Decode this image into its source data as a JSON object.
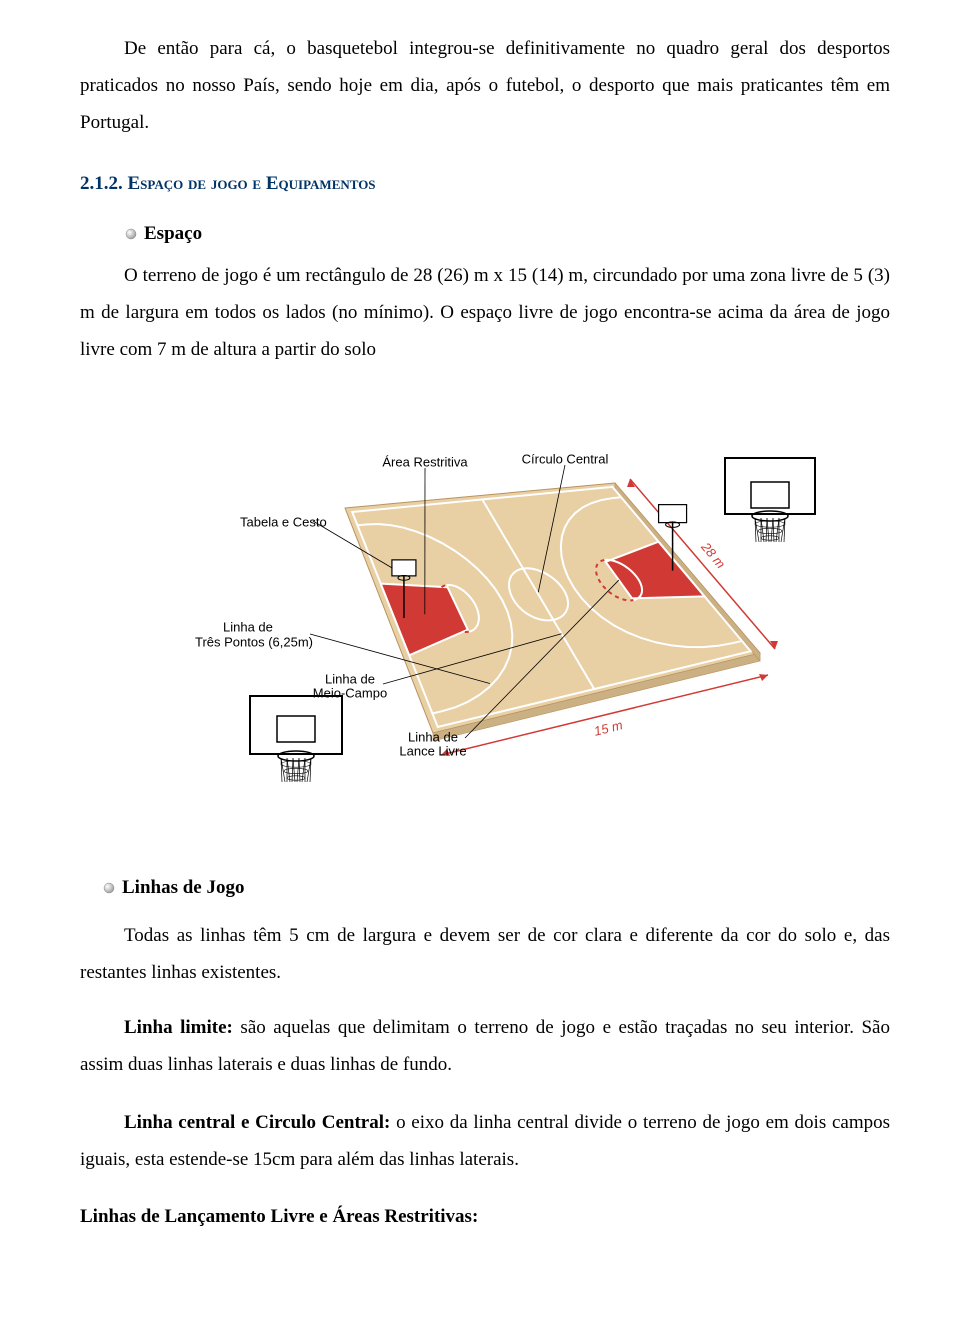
{
  "intro_para": "De então para cá, o basquetebol integrou-se definitivamente no quadro geral dos desportos praticados no nosso País, sendo hoje em dia, após o futebol, o desporto que mais praticantes têm em Portugal.",
  "section": {
    "number": "2.1.2.",
    "title_smallcaps": "Espaço de jogo e Equipamentos"
  },
  "espaco": {
    "label": "Espaço",
    "para": "O terreno de jogo é um rectângulo de 28 (26) m x 15 (14) m, circundado por uma zona livre de 5 (3) m de largura em todos os lados (no mínimo). O espaço livre de jogo encontra-se acima da área de jogo livre com 7 m de altura a partir do solo"
  },
  "linhas": {
    "label": "Linhas de Jogo",
    "para1": "Todas as linhas têm 5 cm de largura e devem ser de cor clara e diferente da cor do solo e, das restantes linhas existentes.",
    "limite_label": "Linha limite:",
    "limite_text": " são aquelas que delimitam o terreno de jogo e estão traçadas no seu interior. São assim duas linhas laterais e duas linhas de fundo.",
    "central_label": "Linha central e Circulo Central:",
    "central_text": " o eixo da linha central divide o terreno de jogo em dois campos iguais, esta estende-se 15cm para além das linhas laterais.",
    "lance_livre_label": "Linhas de Lançamento Livre e Áreas Restritivas:"
  },
  "diagram": {
    "floor_fill": "#e8cfa4",
    "floor_stroke": "#b8935f",
    "paint_fill": "#d13a34",
    "line_color": "#ffffff",
    "dim_color": "#d13a34",
    "text_color": "#000000",
    "annot_font": "13px Arial, sans-serif",
    "labels": {
      "tabela": "Tabela e Cesto",
      "area_rest": "Área Restritiva",
      "circulo": "Círculo Central",
      "tres_pontos_l1": "Linha de",
      "tres_pontos_l2": "Três Pontos (6,25m)",
      "meio_l1": "Linha de",
      "meio_l2": "Meio-Campo",
      "lance_l1": "Linha de",
      "lance_l2": "Lance Livre",
      "len": "28 m",
      "wid": "15 m"
    }
  },
  "colors": {
    "heading": "#003366",
    "body": "#000000"
  }
}
